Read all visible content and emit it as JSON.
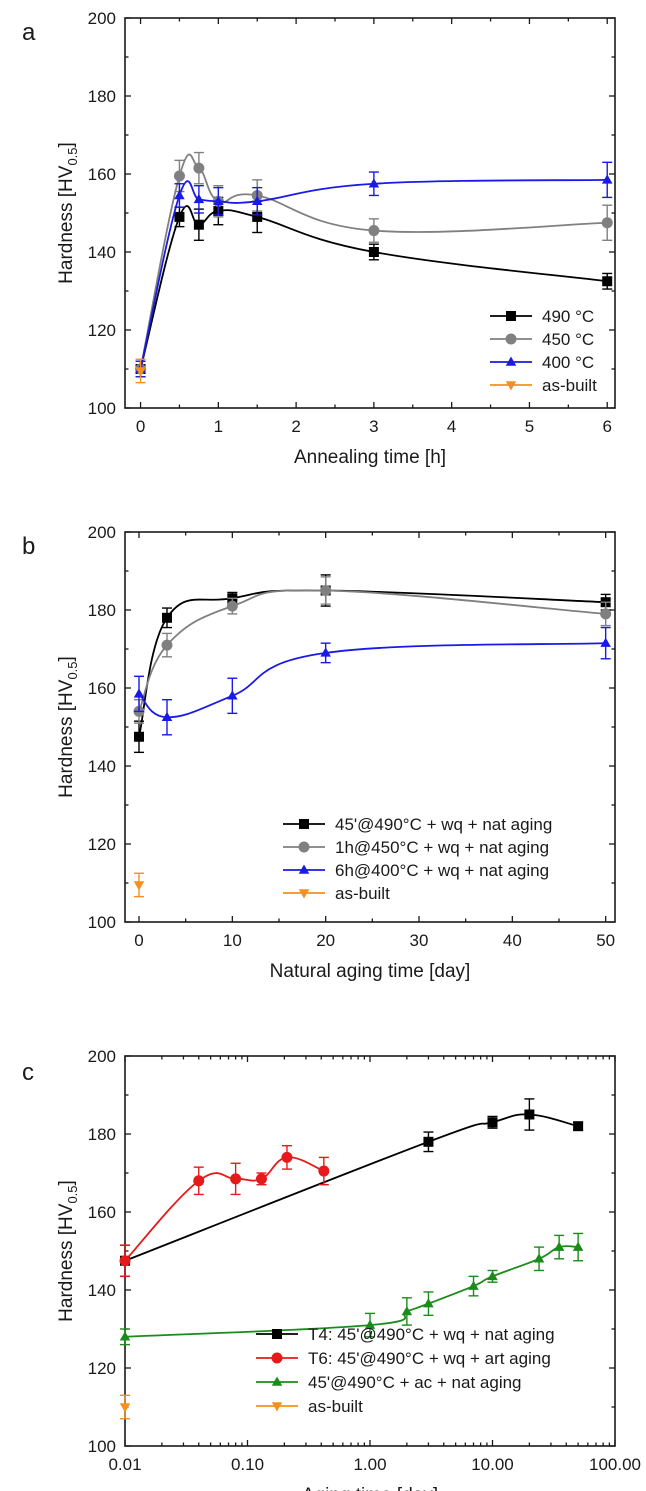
{
  "chart_data": [
    {
      "type": "line",
      "panel_label": "a",
      "xlabel": "Annealing time [h]",
      "ylabel": "Hardness [HV",
      "ylabel_sub": "0.5",
      "ylabel_end": "]",
      "xlim": [
        -0.2,
        6.1
      ],
      "ylim": [
        100,
        200
      ],
      "xticks": [
        0,
        1,
        2,
        3,
        4,
        5,
        6
      ],
      "xtick_labels": [
        "0",
        "1",
        "2",
        "3",
        "4",
        "5",
        "6"
      ],
      "yticks": [
        100,
        120,
        140,
        160,
        180,
        200
      ],
      "ytick_labels": [
        "100",
        "120",
        "140",
        "160",
        "180",
        "200"
      ],
      "xscale": "linear",
      "legend": "bottom-right",
      "series": [
        {
          "name": "490 °C",
          "color": "#000000",
          "marker": "square",
          "x": [
            0,
            0.5,
            0.75,
            1,
            1.5,
            3,
            6
          ],
          "y": [
            110,
            149,
            147,
            150.5,
            149,
            140,
            132.5
          ],
          "err": [
            2,
            2.5,
            4,
            3.5,
            4,
            2,
            2
          ]
        },
        {
          "name": "450 °C",
          "color": "#808080",
          "marker": "circle",
          "x": [
            0,
            0.5,
            0.75,
            1,
            1.5,
            3,
            6
          ],
          "y": [
            110,
            159.5,
            161.5,
            153,
            154.5,
            145.5,
            147.5
          ],
          "err": [
            2,
            4,
            4,
            4,
            4,
            3,
            4.5
          ]
        },
        {
          "name": "400 °C",
          "color": "#1a1ae6",
          "marker": "triangle-up",
          "x": [
            0,
            0.5,
            0.75,
            1,
            1.5,
            3,
            6
          ],
          "y": [
            110,
            154.5,
            153.5,
            153,
            153,
            157.5,
            158.5
          ],
          "err": [
            2,
            3,
            3.5,
            3.5,
            3.5,
            3,
            4.5
          ]
        },
        {
          "name": "as-built",
          "color": "#f5901e",
          "marker": "triangle-down",
          "x": [
            0
          ],
          "y": [
            109.5
          ],
          "err": [
            3
          ],
          "no_line": true
        }
      ]
    },
    {
      "type": "line",
      "panel_label": "b",
      "xlabel": "Natural aging time [day]",
      "ylabel": "Hardness [HV",
      "ylabel_sub": "0.5",
      "ylabel_end": "]",
      "xlim": [
        -1.5,
        51
      ],
      "ylim": [
        100,
        200
      ],
      "xticks": [
        0,
        10,
        20,
        30,
        40,
        50
      ],
      "xtick_labels": [
        "0",
        "10",
        "20",
        "30",
        "40",
        "50"
      ],
      "yticks": [
        100,
        120,
        140,
        160,
        180,
        200
      ],
      "ytick_labels": [
        "100",
        "120",
        "140",
        "160",
        "180",
        "200"
      ],
      "xscale": "linear",
      "legend": "bottom-right",
      "series": [
        {
          "name": "45'@490°C + wq + nat aging",
          "color": "#000000",
          "marker": "square",
          "x": [
            0,
            3,
            10,
            20,
            50
          ],
          "y": [
            147.5,
            178,
            183,
            185,
            182
          ],
          "err": [
            4,
            2.5,
            1.5,
            4,
            2
          ]
        },
        {
          "name": "1h@450°C + wq + nat aging",
          "color": "#808080",
          "marker": "circle",
          "x": [
            0,
            3,
            10,
            20,
            50
          ],
          "y": [
            154,
            171,
            181,
            185,
            179
          ],
          "err": [
            3,
            3,
            2,
            3.5,
            3
          ]
        },
        {
          "name": "6h@400°C + wq + nat aging",
          "color": "#1a1ae6",
          "marker": "triangle-up",
          "x": [
            0,
            3,
            10,
            20,
            50
          ],
          "y": [
            158.5,
            152.5,
            158,
            169,
            171.5
          ],
          "err": [
            4.5,
            4.5,
            4.5,
            2.5,
            4
          ]
        },
        {
          "name": "as-built",
          "color": "#f5901e",
          "marker": "triangle-down",
          "x": [
            0
          ],
          "y": [
            109.5
          ],
          "err": [
            3
          ],
          "no_line": true
        }
      ]
    },
    {
      "type": "line",
      "panel_label": "c",
      "xlabel": "Aging time [day]",
      "ylabel": "Hardness [HV",
      "ylabel_sub": "0.5",
      "ylabel_end": "]",
      "xlim": [
        0.01,
        100
      ],
      "ylim": [
        100,
        200
      ],
      "xticks": [
        0.01,
        0.1,
        1,
        10,
        100
      ],
      "xtick_labels": [
        "0.01",
        "0.10",
        "1.00",
        "10.00",
        "100.00"
      ],
      "yticks": [
        100,
        120,
        140,
        160,
        180,
        200
      ],
      "ytick_labels": [
        "100",
        "120",
        "140",
        "160",
        "180",
        "200"
      ],
      "xscale": "log",
      "legend": "bottom-right",
      "series": [
        {
          "name": "T4: 45'@490°C + wq + nat aging",
          "color": "#000000",
          "marker": "square",
          "x": [
            0.01,
            3,
            10,
            20,
            50
          ],
          "y": [
            147.5,
            178,
            183,
            185,
            182
          ],
          "err": [
            4,
            2.5,
            1.5,
            4,
            1
          ]
        },
        {
          "name": "T6: 45'@490°C + wq + art aging",
          "color": "#e61a1a",
          "marker": "circle",
          "x": [
            0.01,
            0.04,
            0.08,
            0.13,
            0.21,
            0.42
          ],
          "y": [
            147.5,
            168,
            168.5,
            168.5,
            174,
            170.5
          ],
          "err": [
            4,
            3.5,
            4,
            1.5,
            3,
            3.5
          ]
        },
        {
          "name": "45'@490°C + ac + nat aging",
          "color": "#1a8c1a",
          "marker": "triangle-up",
          "x": [
            0.01,
            1,
            2,
            3,
            7,
            10,
            24,
            35,
            50
          ],
          "y": [
            128,
            131,
            134.5,
            136.5,
            141,
            143.5,
            148,
            151,
            151
          ],
          "err": [
            2,
            3,
            3.5,
            3,
            2.5,
            1.5,
            3,
            3,
            3.5
          ]
        },
        {
          "name": "as-built",
          "color": "#f5901e",
          "marker": "triangle-down",
          "x": [
            0.01
          ],
          "y": [
            110
          ],
          "err": [
            3
          ],
          "no_line": true
        }
      ]
    }
  ]
}
